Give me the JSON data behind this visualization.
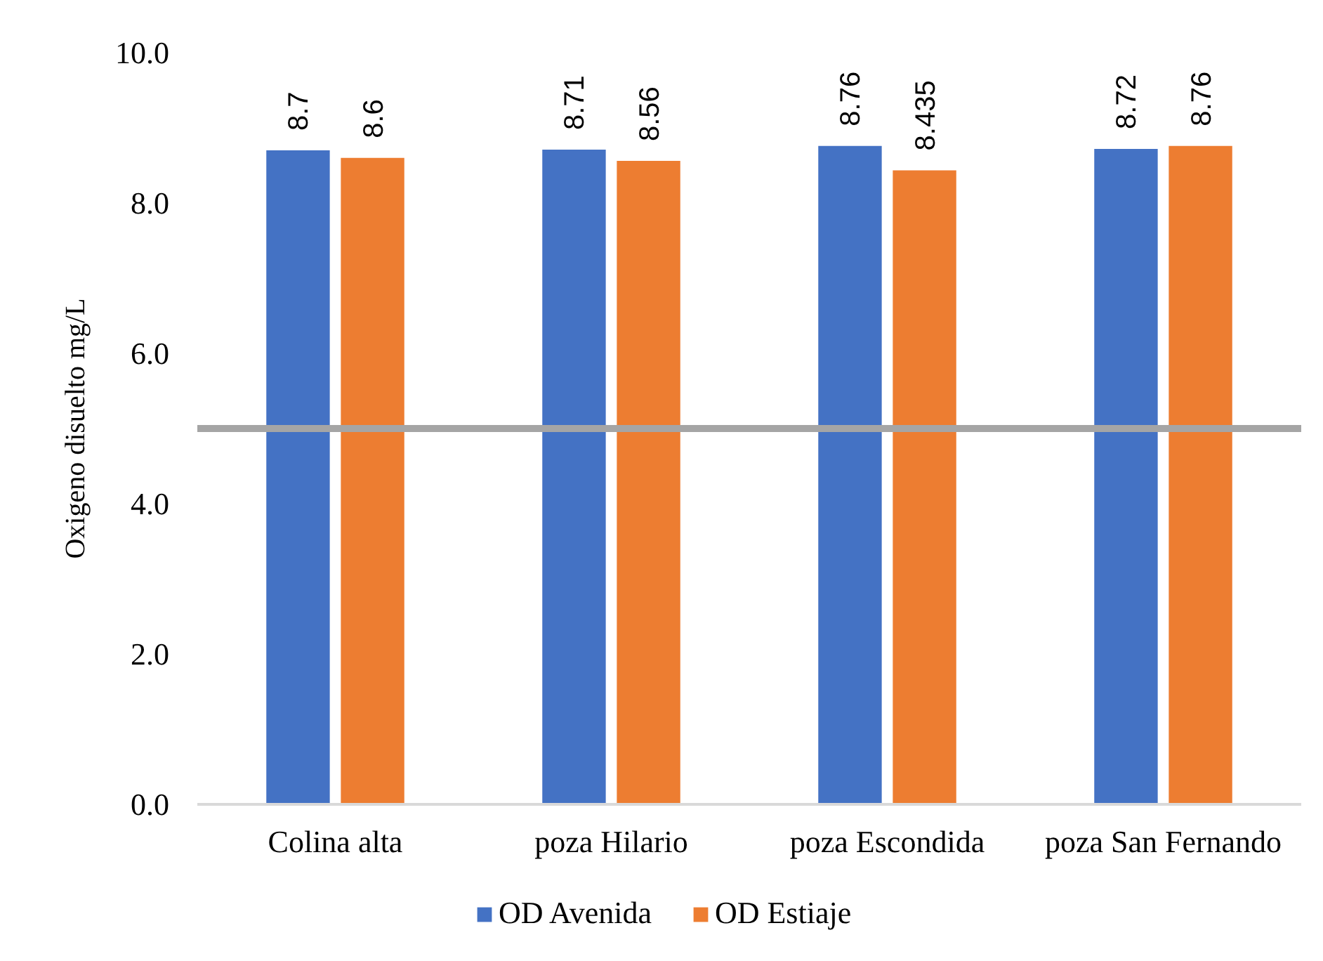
{
  "chart_data": {
    "type": "bar",
    "categories": [
      "Colina alta",
      "poza Hilario",
      "poza Escondida",
      "poza San Fernando"
    ],
    "ylabel": "Oxigeno disuelto mg/L",
    "series": [
      {
        "name": "OD Avenida",
        "color": "#4472c4",
        "values": [
          8.7,
          8.71,
          8.76,
          8.72
        ]
      },
      {
        "name": "OD Estiaje",
        "color": "#ed7d31",
        "values": [
          8.6,
          8.56,
          8.435,
          8.76
        ]
      }
    ],
    "ylim": [
      0,
      10
    ],
    "yticks": [
      {
        "value": 0,
        "label": "0.0"
      },
      {
        "value": 2,
        "label": "2.0"
      },
      {
        "value": 4,
        "label": "4.0"
      },
      {
        "value": 6,
        "label": "6.0"
      },
      {
        "value": 8,
        "label": "8.0"
      },
      {
        "value": 10,
        "label": "10.0"
      }
    ],
    "data_labels": true,
    "ref_lines": [
      {
        "axis": "y",
        "value": 5,
        "color": "#a5a5a5"
      }
    ],
    "grid": false,
    "legend": "bottom"
  }
}
